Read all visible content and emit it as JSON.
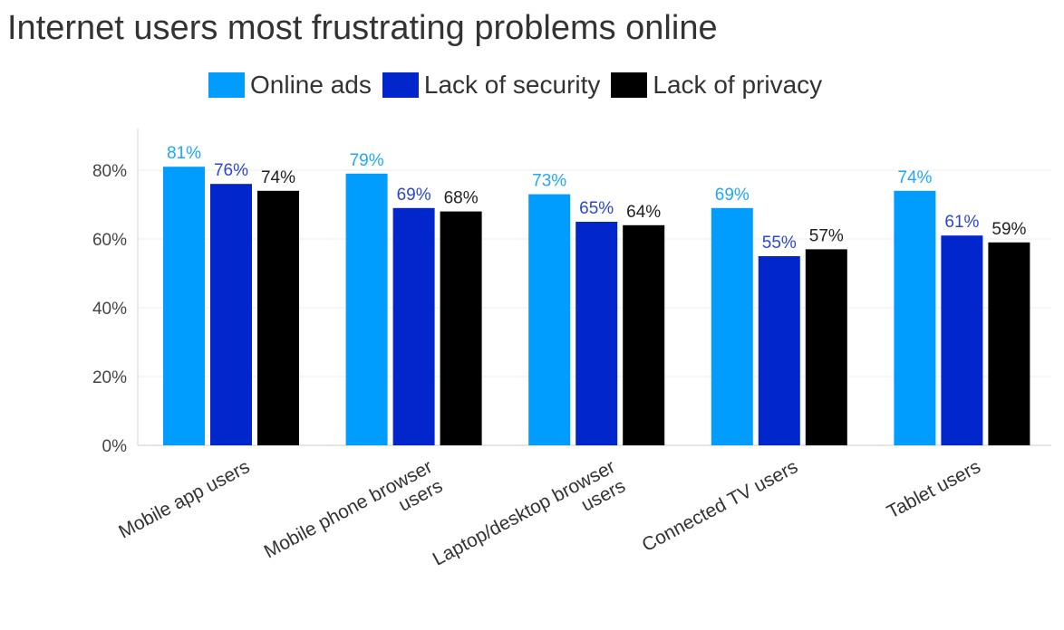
{
  "chart_data": {
    "type": "bar",
    "title": "Internet users most frustrating problems online",
    "categories": [
      [
        "Mobile app users"
      ],
      [
        "Mobile phone browser",
        "users"
      ],
      [
        "Laptop/desktop browser",
        "users"
      ],
      [
        "Connected TV users"
      ],
      [
        "Tablet users"
      ]
    ],
    "series": [
      {
        "name": "Online ads",
        "color": "#009DFF",
        "label_color": "#1FA7FF",
        "values": [
          81,
          79,
          73,
          69,
          74
        ]
      },
      {
        "name": "Lack of security",
        "color": "#0026CC",
        "label_color": "#2B46D9",
        "values": [
          76,
          69,
          65,
          55,
          61
        ]
      },
      {
        "name": "Lack of privacy",
        "color": "#000000",
        "label_color": "#222222",
        "values": [
          74,
          68,
          64,
          57,
          59
        ]
      }
    ],
    "ylim": [
      0,
      90
    ],
    "yticks": [
      0,
      20,
      40,
      60,
      80
    ],
    "value_suffix": "%",
    "xlabel": "",
    "ylabel": "",
    "legend_position": "top-center",
    "grid": true
  }
}
